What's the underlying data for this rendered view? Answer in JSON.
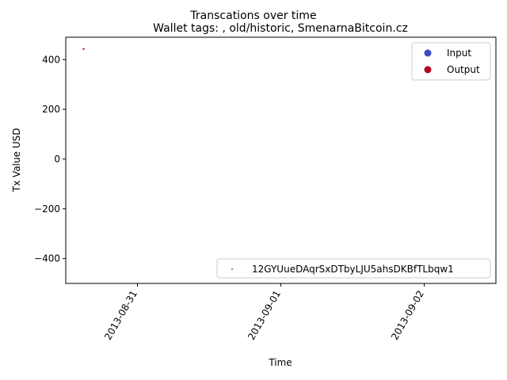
{
  "chart_data": {
    "type": "scatter",
    "suptitle": "Transcations over time",
    "title": "Wallet tags: , old/historic, SmenarnaBitcoin.cz",
    "xlabel": "Time",
    "ylabel": "Tx Value USD",
    "xlim": [
      "2013-08-30T12:00",
      "2013-09-02T12:00"
    ],
    "ylim": [
      -500,
      490
    ],
    "x_ticks": [
      "2013-08-31",
      "2013-09-01",
      "2013-09-02"
    ],
    "y_ticks": [
      -400,
      -200,
      0,
      200,
      400
    ],
    "legend_type": {
      "position": "upper right",
      "entries": [
        {
          "label": "Input",
          "color": "#3b4cc0"
        },
        {
          "label": "Output",
          "color": "#b40426"
        }
      ]
    },
    "legend_wallet": {
      "position": "lower right",
      "entries": [
        {
          "label": "12GYUueDAqrSxDTbyLJU5ahsDKBfTLbqw1",
          "color": "#1f77b4"
        }
      ]
    },
    "points": [
      {
        "x": "2013-08-30T15:00",
        "y": 443,
        "kind": "Output",
        "color": "#b40426"
      }
    ]
  }
}
